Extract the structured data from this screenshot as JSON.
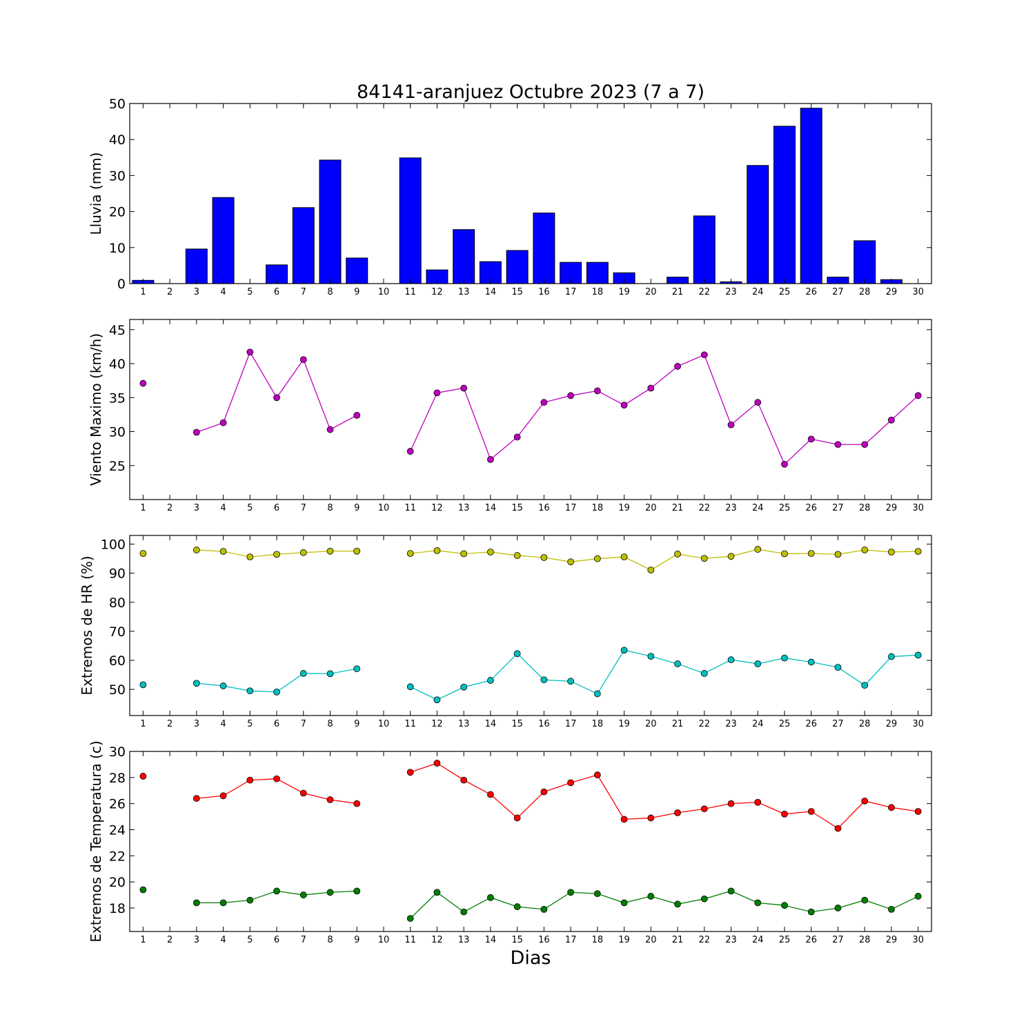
{
  "title": "84141-aranjuez Octubre 2023  (7 a 7)",
  "xlabel": "Dias",
  "chart_data": [
    {
      "type": "bar",
      "ylabel": "Lluvia (mm)",
      "ylim": [
        0,
        50
      ],
      "yticks": [
        0,
        10,
        20,
        30,
        40,
        50
      ],
      "xticks": [
        1,
        2,
        3,
        4,
        5,
        6,
        7,
        8,
        9,
        10,
        11,
        12,
        13,
        14,
        15,
        16,
        17,
        18,
        19,
        20,
        21,
        22,
        23,
        24,
        25,
        26,
        27,
        28,
        29,
        30
      ],
      "bar_color": "#0000ff",
      "x": [
        1,
        2,
        3,
        4,
        5,
        6,
        7,
        8,
        9,
        10,
        11,
        12,
        13,
        14,
        15,
        16,
        17,
        18,
        19,
        20,
        21,
        22,
        23,
        24,
        25,
        26,
        27,
        28,
        29,
        30
      ],
      "values": [
        0.9,
        0,
        9.6,
        23.9,
        0,
        5.2,
        21.1,
        34.3,
        7.1,
        0,
        34.9,
        3.8,
        15.0,
        6.1,
        9.2,
        19.6,
        5.9,
        5.9,
        3.0,
        0,
        1.8,
        18.8,
        0.5,
        32.8,
        43.7,
        48.7,
        1.8,
        11.9,
        1.1,
        0
      ]
    },
    {
      "type": "line",
      "ylabel": "Viento Maximo (km/h)",
      "ylim": [
        20,
        46.5
      ],
      "yticks": [
        25,
        30,
        35,
        40,
        45
      ],
      "xticks": [
        1,
        2,
        3,
        4,
        5,
        6,
        7,
        8,
        9,
        10,
        11,
        12,
        13,
        14,
        15,
        16,
        17,
        18,
        19,
        20,
        21,
        22,
        23,
        24,
        25,
        26,
        27,
        28,
        29,
        30
      ],
      "series": [
        {
          "color": "#bf00bf",
          "x": [
            1,
            2,
            3,
            4,
            5,
            6,
            7,
            8,
            9,
            10,
            11,
            12,
            13,
            14,
            15,
            16,
            17,
            18,
            19,
            20,
            21,
            22,
            23,
            24,
            25,
            26,
            27,
            28,
            29,
            30
          ],
          "values": [
            37.1,
            null,
            29.9,
            31.3,
            41.7,
            35.0,
            40.6,
            30.3,
            32.4,
            null,
            27.1,
            35.7,
            36.4,
            25.9,
            29.2,
            34.3,
            35.3,
            36.0,
            33.9,
            36.4,
            39.6,
            41.3,
            31.0,
            34.3,
            25.2,
            28.9,
            28.1,
            28.1,
            31.7,
            35.3
          ]
        }
      ]
    },
    {
      "type": "line",
      "ylabel": "Extremos de HR (%)",
      "ylim": [
        41,
        103
      ],
      "yticks": [
        50,
        60,
        70,
        80,
        90,
        100
      ],
      "xticks": [
        1,
        2,
        3,
        4,
        5,
        6,
        7,
        8,
        9,
        10,
        11,
        12,
        13,
        14,
        15,
        16,
        17,
        18,
        19,
        20,
        21,
        22,
        23,
        24,
        25,
        26,
        27,
        28,
        29,
        30
      ],
      "series": [
        {
          "color": "#bfbf00",
          "x": [
            1,
            2,
            3,
            4,
            5,
            6,
            7,
            8,
            9,
            10,
            11,
            12,
            13,
            14,
            15,
            16,
            17,
            18,
            19,
            20,
            21,
            22,
            23,
            24,
            25,
            26,
            27,
            28,
            29,
            30
          ],
          "values": [
            96.8,
            null,
            98.0,
            97.5,
            95.6,
            96.5,
            97.1,
            97.6,
            97.6,
            null,
            96.8,
            97.8,
            96.7,
            97.3,
            96.1,
            95.4,
            93.9,
            95.0,
            95.6,
            91.1,
            96.6,
            95.1,
            95.8,
            98.2,
            96.7,
            96.8,
            96.5,
            98.0,
            97.3,
            97.5
          ]
        },
        {
          "color": "#00bfbf",
          "x": [
            1,
            2,
            3,
            4,
            5,
            6,
            7,
            8,
            9,
            10,
            11,
            12,
            13,
            14,
            15,
            16,
            17,
            18,
            19,
            20,
            21,
            22,
            23,
            24,
            25,
            26,
            27,
            28,
            29,
            30
          ],
          "values": [
            51.6,
            null,
            52.1,
            51.2,
            49.5,
            49.1,
            55.5,
            55.4,
            57.1,
            null,
            50.9,
            46.4,
            50.8,
            53.1,
            62.3,
            53.3,
            52.8,
            48.5,
            63.5,
            61.4,
            58.8,
            55.5,
            60.2,
            58.8,
            60.8,
            59.4,
            57.6,
            51.4,
            61.3,
            61.8
          ]
        }
      ]
    },
    {
      "type": "line",
      "ylabel": "Extremos de Temperatura (c)",
      "ylim": [
        16.2,
        30
      ],
      "yticks": [
        18,
        20,
        22,
        24,
        26,
        28,
        30
      ],
      "xticks": [
        1,
        2,
        3,
        4,
        5,
        6,
        7,
        8,
        9,
        10,
        11,
        12,
        13,
        14,
        15,
        16,
        17,
        18,
        19,
        20,
        21,
        22,
        23,
        24,
        25,
        26,
        27,
        28,
        29,
        30
      ],
      "series": [
        {
          "color": "#ff0000",
          "x": [
            1,
            2,
            3,
            4,
            5,
            6,
            7,
            8,
            9,
            10,
            11,
            12,
            13,
            14,
            15,
            16,
            17,
            18,
            19,
            20,
            21,
            22,
            23,
            24,
            25,
            26,
            27,
            28,
            29,
            30
          ],
          "values": [
            28.1,
            null,
            26.4,
            26.6,
            27.8,
            27.9,
            26.8,
            26.3,
            26.0,
            null,
            28.4,
            29.1,
            27.8,
            26.7,
            24.9,
            26.9,
            27.6,
            28.2,
            24.8,
            24.9,
            25.3,
            25.6,
            26.0,
            26.1,
            25.2,
            25.4,
            24.1,
            26.2,
            25.7,
            25.4
          ]
        },
        {
          "color": "#007f00",
          "x": [
            1,
            2,
            3,
            4,
            5,
            6,
            7,
            8,
            9,
            10,
            11,
            12,
            13,
            14,
            15,
            16,
            17,
            18,
            19,
            20,
            21,
            22,
            23,
            24,
            25,
            26,
            27,
            28,
            29,
            30
          ],
          "values": [
            19.4,
            null,
            18.4,
            18.4,
            18.6,
            19.3,
            19.0,
            19.2,
            19.3,
            null,
            17.2,
            19.2,
            17.7,
            18.8,
            18.1,
            17.9,
            19.2,
            19.1,
            18.4,
            18.9,
            18.3,
            18.7,
            19.3,
            18.4,
            18.2,
            17.7,
            18.0,
            18.6,
            17.9,
            18.9
          ]
        }
      ]
    }
  ]
}
